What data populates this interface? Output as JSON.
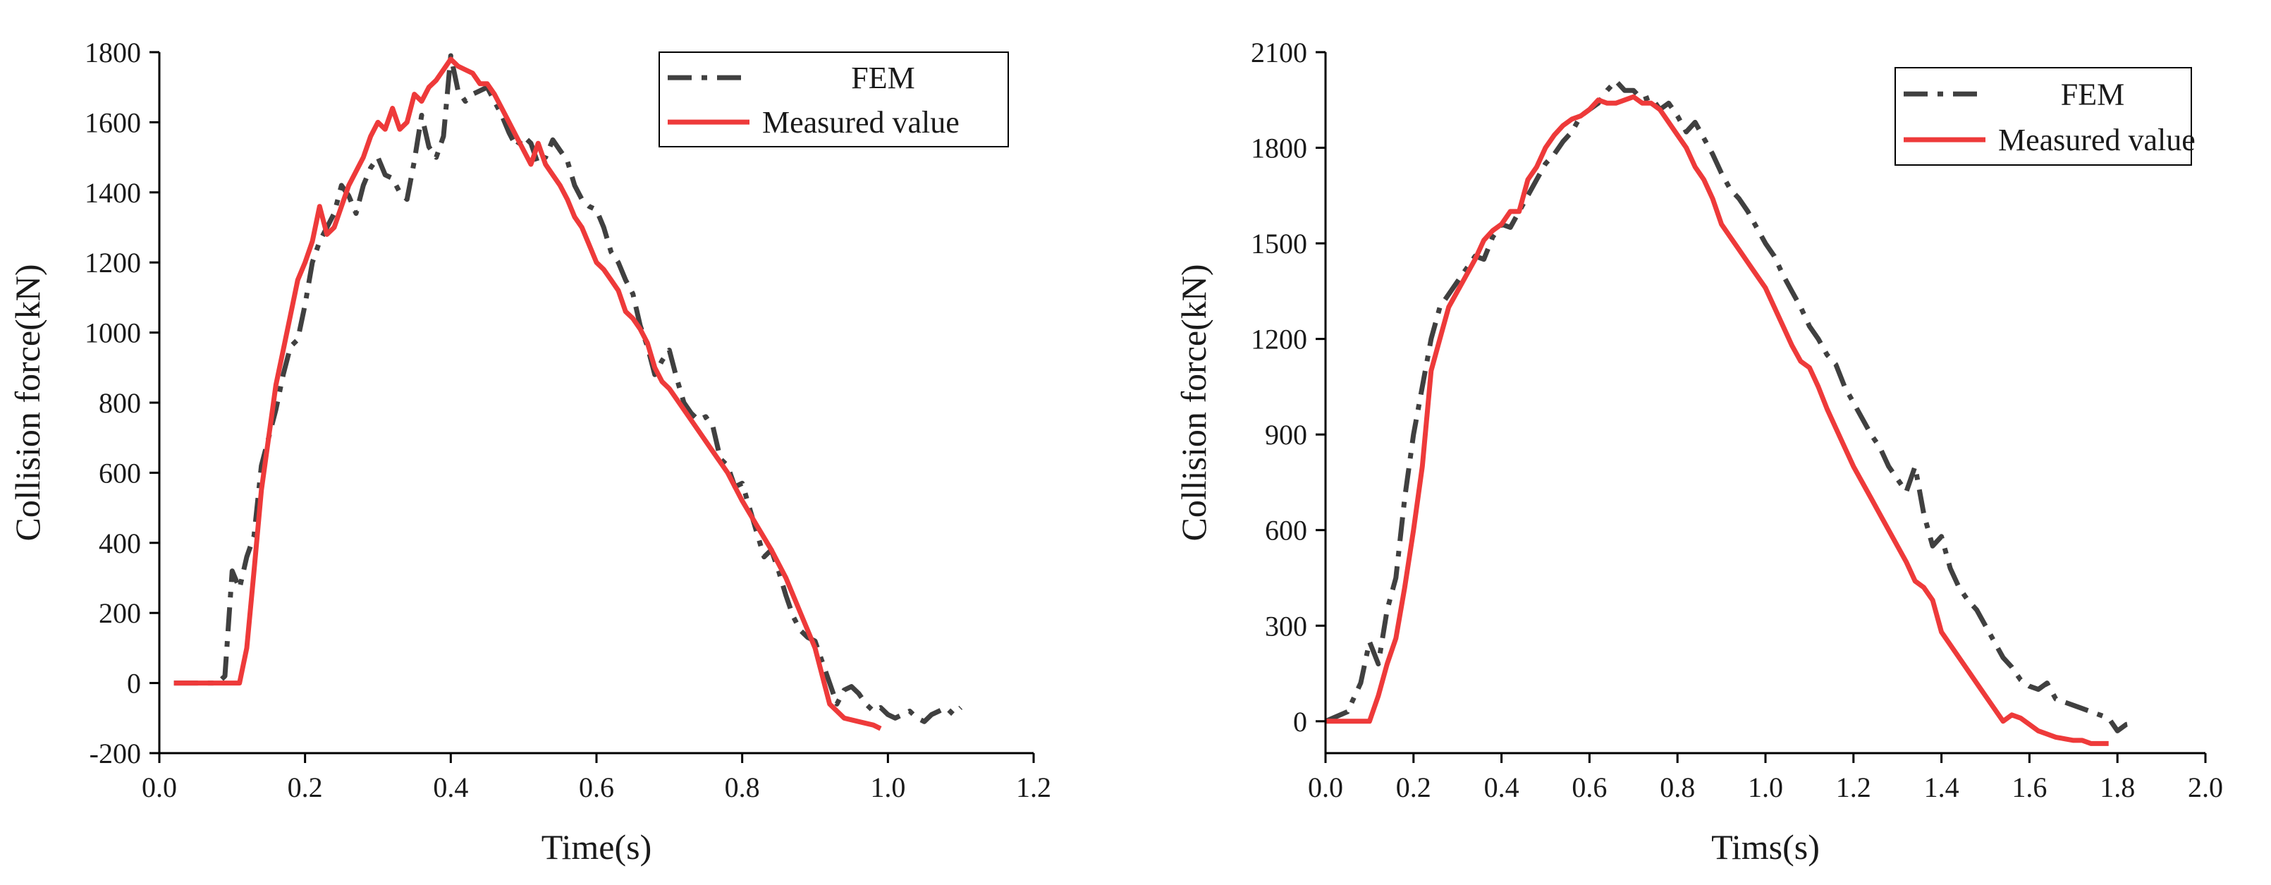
{
  "colors": {
    "fem": "#404040",
    "measured": "#ee3a3a",
    "axis": "#000000"
  },
  "chart_data": [
    {
      "type": "line",
      "xlabel": "Time(s)",
      "ylabel": "Collision force(kN)",
      "xlim": [
        0,
        1.2
      ],
      "ylim": [
        -200,
        1800
      ],
      "xticks": [
        0.0,
        0.2,
        0.4,
        0.6,
        0.8,
        1.0,
        1.2
      ],
      "xtick_labels": [
        "0.0",
        "0.2",
        "0.4",
        "0.6",
        "0.8",
        "1.0",
        "1.2"
      ],
      "yticks": [
        -200,
        0,
        200,
        400,
        600,
        800,
        1000,
        1200,
        1400,
        1600,
        1800
      ],
      "ytick_labels": [
        "-200",
        "0",
        "200",
        "400",
        "600",
        "800",
        "1000",
        "1200",
        "1400",
        "1600",
        "1800"
      ],
      "legend_position": "top-right",
      "series": [
        {
          "name": "FEM",
          "style": "dash-dot",
          "x": [
            0.02,
            0.05,
            0.08,
            0.09,
            0.1,
            0.11,
            0.12,
            0.13,
            0.14,
            0.15,
            0.16,
            0.17,
            0.18,
            0.19,
            0.2,
            0.21,
            0.22,
            0.23,
            0.24,
            0.25,
            0.26,
            0.27,
            0.28,
            0.29,
            0.3,
            0.31,
            0.32,
            0.33,
            0.34,
            0.35,
            0.36,
            0.37,
            0.38,
            0.39,
            0.4,
            0.41,
            0.42,
            0.43,
            0.44,
            0.45,
            0.46,
            0.47,
            0.48,
            0.49,
            0.5,
            0.51,
            0.52,
            0.53,
            0.54,
            0.55,
            0.56,
            0.57,
            0.58,
            0.59,
            0.6,
            0.61,
            0.62,
            0.63,
            0.64,
            0.65,
            0.66,
            0.67,
            0.68,
            0.69,
            0.7,
            0.71,
            0.72,
            0.73,
            0.74,
            0.75,
            0.76,
            0.77,
            0.78,
            0.79,
            0.8,
            0.81,
            0.82,
            0.83,
            0.84,
            0.85,
            0.86,
            0.87,
            0.88,
            0.89,
            0.9,
            0.91,
            0.92,
            0.93,
            0.94,
            0.95,
            0.96,
            0.97,
            0.98,
            0.99,
            1.0,
            1.01,
            1.02,
            1.03,
            1.04,
            1.05,
            1.06,
            1.07,
            1.08,
            1.09,
            1.1
          ],
          "y": [
            0,
            0,
            0,
            20,
            320,
            270,
            360,
            420,
            620,
            700,
            780,
            880,
            960,
            980,
            1080,
            1200,
            1260,
            1300,
            1340,
            1420,
            1390,
            1340,
            1420,
            1470,
            1500,
            1450,
            1440,
            1400,
            1380,
            1490,
            1620,
            1530,
            1500,
            1560,
            1790,
            1690,
            1660,
            1680,
            1690,
            1700,
            1660,
            1620,
            1570,
            1530,
            1560,
            1540,
            1480,
            1500,
            1550,
            1520,
            1490,
            1420,
            1380,
            1360,
            1350,
            1300,
            1230,
            1200,
            1150,
            1110,
            1020,
            960,
            880,
            920,
            950,
            870,
            800,
            770,
            750,
            760,
            730,
            640,
            620,
            560,
            570,
            500,
            430,
            360,
            380,
            320,
            250,
            190,
            150,
            130,
            120,
            60,
            0,
            -60,
            -20,
            -10,
            -30,
            -60,
            -80,
            -70,
            -90,
            -100,
            -90,
            -80,
            -100,
            -110,
            -90,
            -80,
            -70,
            -90,
            -70
          ],
          "note": "values approximated from the plotted curve"
        },
        {
          "name": "Measured value",
          "style": "solid",
          "x": [
            0.02,
            0.05,
            0.08,
            0.1,
            0.11,
            0.12,
            0.13,
            0.14,
            0.15,
            0.16,
            0.17,
            0.18,
            0.19,
            0.2,
            0.21,
            0.22,
            0.23,
            0.24,
            0.25,
            0.26,
            0.27,
            0.28,
            0.29,
            0.3,
            0.31,
            0.32,
            0.33,
            0.34,
            0.35,
            0.36,
            0.37,
            0.38,
            0.39,
            0.4,
            0.41,
            0.42,
            0.43,
            0.44,
            0.45,
            0.46,
            0.47,
            0.48,
            0.49,
            0.5,
            0.51,
            0.52,
            0.53,
            0.54,
            0.55,
            0.56,
            0.57,
            0.58,
            0.59,
            0.6,
            0.61,
            0.62,
            0.63,
            0.64,
            0.65,
            0.66,
            0.67,
            0.68,
            0.69,
            0.7,
            0.72,
            0.74,
            0.76,
            0.78,
            0.8,
            0.82,
            0.84,
            0.86,
            0.88,
            0.9,
            0.92,
            0.94,
            0.96,
            0.98,
            0.99
          ],
          "y": [
            0,
            0,
            0,
            0,
            0,
            100,
            320,
            550,
            700,
            850,
            950,
            1050,
            1150,
            1200,
            1260,
            1360,
            1280,
            1300,
            1360,
            1420,
            1460,
            1500,
            1560,
            1600,
            1580,
            1640,
            1580,
            1600,
            1680,
            1660,
            1700,
            1720,
            1750,
            1780,
            1760,
            1750,
            1740,
            1710,
            1710,
            1680,
            1640,
            1600,
            1560,
            1520,
            1480,
            1540,
            1480,
            1450,
            1420,
            1380,
            1330,
            1300,
            1250,
            1200,
            1180,
            1150,
            1120,
            1060,
            1040,
            1010,
            970,
            900,
            860,
            840,
            780,
            720,
            660,
            600,
            520,
            450,
            380,
            300,
            200,
            100,
            -60,
            -100,
            -110,
            -120,
            -130
          ],
          "note": "values approximated from the plotted curve"
        }
      ]
    },
    {
      "type": "line",
      "xlabel": "Tims(s)",
      "ylabel": "Collision force(kN)",
      "xlim": [
        0,
        2.0
      ],
      "ylim": [
        -100,
        2100
      ],
      "xticks": [
        0.0,
        0.2,
        0.4,
        0.6,
        0.8,
        1.0,
        1.2,
        1.4,
        1.6,
        1.8,
        2.0
      ],
      "xtick_labels": [
        "0.0",
        "0.2",
        "0.4",
        "0.6",
        "0.8",
        "1.0",
        "1.2",
        "1.4",
        "1.6",
        "1.8",
        "2.0"
      ],
      "yticks": [
        0,
        300,
        600,
        900,
        1200,
        1500,
        1800,
        2100
      ],
      "ytick_labels": [
        "0",
        "300",
        "600",
        "900",
        "1200",
        "1500",
        "1800",
        "2100"
      ],
      "legend_position": "top-right",
      "series": [
        {
          "name": "FEM",
          "style": "dash-dot",
          "x": [
            0.0,
            0.05,
            0.08,
            0.1,
            0.12,
            0.14,
            0.16,
            0.18,
            0.2,
            0.22,
            0.24,
            0.26,
            0.28,
            0.3,
            0.32,
            0.34,
            0.36,
            0.38,
            0.4,
            0.42,
            0.44,
            0.46,
            0.48,
            0.5,
            0.52,
            0.54,
            0.56,
            0.58,
            0.6,
            0.62,
            0.64,
            0.66,
            0.68,
            0.7,
            0.72,
            0.74,
            0.76,
            0.78,
            0.8,
            0.82,
            0.84,
            0.86,
            0.88,
            0.9,
            0.92,
            0.94,
            0.96,
            0.98,
            1.0,
            1.02,
            1.04,
            1.06,
            1.08,
            1.1,
            1.12,
            1.14,
            1.16,
            1.18,
            1.2,
            1.22,
            1.24,
            1.26,
            1.28,
            1.3,
            1.32,
            1.34,
            1.36,
            1.38,
            1.4,
            1.42,
            1.44,
            1.46,
            1.48,
            1.5,
            1.52,
            1.54,
            1.56,
            1.58,
            1.6,
            1.62,
            1.64,
            1.66,
            1.68,
            1.7,
            1.72,
            1.74,
            1.76,
            1.78,
            1.8,
            1.82,
            1.84
          ],
          "y": [
            0,
            30,
            120,
            250,
            180,
            350,
            450,
            700,
            900,
            1050,
            1200,
            1300,
            1340,
            1380,
            1420,
            1460,
            1450,
            1520,
            1560,
            1550,
            1600,
            1650,
            1700,
            1750,
            1780,
            1820,
            1850,
            1900,
            1920,
            1940,
            1980,
            2010,
            1980,
            1980,
            1950,
            1960,
            1920,
            1940,
            1900,
            1850,
            1880,
            1830,
            1780,
            1720,
            1670,
            1640,
            1600,
            1550,
            1500,
            1460,
            1400,
            1350,
            1300,
            1240,
            1200,
            1150,
            1120,
            1050,
            1000,
            950,
            900,
            860,
            800,
            760,
            720,
            800,
            650,
            550,
            580,
            480,
            420,
            380,
            350,
            300,
            250,
            200,
            170,
            130,
            110,
            100,
            120,
            70,
            60,
            50,
            40,
            30,
            20,
            10,
            -30,
            -10,
            -5
          ],
          "note": "values approximated from the plotted curve"
        },
        {
          "name": "Measured value",
          "style": "solid",
          "x": [
            0.0,
            0.05,
            0.1,
            0.12,
            0.14,
            0.16,
            0.18,
            0.2,
            0.22,
            0.24,
            0.26,
            0.28,
            0.3,
            0.32,
            0.34,
            0.36,
            0.38,
            0.4,
            0.42,
            0.44,
            0.46,
            0.48,
            0.5,
            0.52,
            0.54,
            0.56,
            0.58,
            0.6,
            0.62,
            0.64,
            0.66,
            0.68,
            0.7,
            0.72,
            0.74,
            0.76,
            0.78,
            0.8,
            0.82,
            0.84,
            0.86,
            0.88,
            0.9,
            0.92,
            0.94,
            0.96,
            0.98,
            1.0,
            1.02,
            1.04,
            1.06,
            1.08,
            1.1,
            1.12,
            1.14,
            1.16,
            1.18,
            1.2,
            1.22,
            1.24,
            1.26,
            1.28,
            1.3,
            1.32,
            1.34,
            1.36,
            1.38,
            1.4,
            1.42,
            1.44,
            1.46,
            1.48,
            1.5,
            1.52,
            1.54,
            1.56,
            1.58,
            1.6,
            1.62,
            1.64,
            1.66,
            1.68,
            1.7,
            1.72,
            1.74,
            1.76,
            1.78
          ],
          "y": [
            0,
            0,
            0,
            80,
            180,
            260,
            420,
            600,
            800,
            1100,
            1200,
            1300,
            1350,
            1400,
            1450,
            1510,
            1540,
            1560,
            1600,
            1600,
            1700,
            1740,
            1800,
            1840,
            1870,
            1890,
            1900,
            1920,
            1950,
            1940,
            1940,
            1950,
            1960,
            1940,
            1940,
            1920,
            1880,
            1840,
            1800,
            1740,
            1700,
            1640,
            1560,
            1520,
            1480,
            1440,
            1400,
            1360,
            1300,
            1240,
            1180,
            1130,
            1110,
            1050,
            980,
            920,
            860,
            800,
            750,
            700,
            650,
            600,
            550,
            500,
            440,
            420,
            380,
            280,
            240,
            200,
            160,
            120,
            80,
            40,
            0,
            20,
            10,
            -10,
            -30,
            -40,
            -50,
            -55,
            -60,
            -60,
            -70,
            -70,
            -70
          ],
          "note": "values approximated from the plotted curve"
        }
      ]
    }
  ]
}
